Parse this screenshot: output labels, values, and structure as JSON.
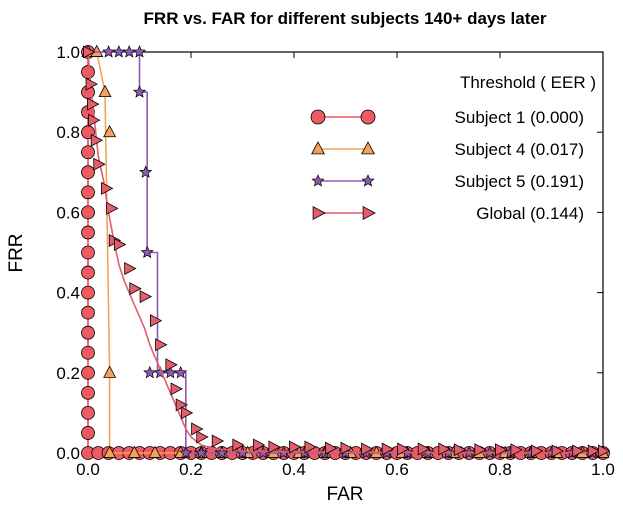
{
  "chart_data": {
    "type": "line",
    "title": "FRR vs. FAR for different subjects 140+ days later",
    "xlabel": "FAR",
    "ylabel": "FRR",
    "xlim": [
      0.0,
      1.0
    ],
    "ylim": [
      0.0,
      1.0
    ],
    "xticks": [
      "0.0",
      "0.2",
      "0.4",
      "0.6",
      "0.8",
      "1.0"
    ],
    "yticks": [
      "0.0",
      "0.2",
      "0.4",
      "0.6",
      "0.8",
      "1.0"
    ],
    "grid": false,
    "legend": {
      "title": "Threshold ( EER )",
      "position": "top-right"
    },
    "series": [
      {
        "name": "Subject 1 (0.000)",
        "color": "#ee5a62",
        "marker": "circle",
        "x": [
          0.0,
          0.0,
          0.0,
          0.0,
          0.0,
          0.0,
          0.0,
          0.0,
          0.0,
          0.0,
          0.0,
          0.0,
          0.0,
          0.0,
          0.0,
          0.0,
          0.0,
          0.0,
          0.0,
          0.0,
          0.0,
          0.02,
          0.04,
          0.06,
          0.08,
          0.1,
          0.12,
          0.14,
          0.16,
          0.18,
          0.2,
          0.22,
          0.24,
          0.26,
          0.28,
          0.3,
          0.32,
          0.34,
          0.36,
          0.38,
          0.4,
          0.42,
          0.44,
          0.46,
          0.48,
          0.5,
          0.52,
          0.54,
          0.56,
          0.58,
          0.6,
          0.62,
          0.64,
          0.66,
          0.68,
          0.7,
          0.72,
          0.74,
          0.76,
          0.78,
          0.8,
          0.82,
          0.84,
          0.86,
          0.88,
          0.9,
          0.92,
          0.94,
          0.96,
          0.98,
          1.0
        ],
        "y": [
          1.0,
          0.95,
          0.9,
          0.85,
          0.8,
          0.75,
          0.7,
          0.65,
          0.6,
          0.55,
          0.5,
          0.45,
          0.4,
          0.35,
          0.3,
          0.25,
          0.2,
          0.15,
          0.1,
          0.05,
          0.0,
          0.0,
          0.0,
          0.0,
          0.0,
          0.0,
          0.0,
          0.0,
          0.0,
          0.0,
          0.0,
          0.0,
          0.0,
          0.0,
          0.0,
          0.0,
          0.0,
          0.0,
          0.0,
          0.0,
          0.0,
          0.0,
          0.0,
          0.0,
          0.0,
          0.0,
          0.0,
          0.0,
          0.0,
          0.0,
          0.0,
          0.0,
          0.0,
          0.0,
          0.0,
          0.0,
          0.0,
          0.0,
          0.0,
          0.0,
          0.0,
          0.0,
          0.0,
          0.0,
          0.0,
          0.0,
          0.0,
          0.0,
          0.0,
          0.0,
          0.0
        ]
      },
      {
        "name": "Subject 4 (0.017)",
        "color": "#f4a259",
        "marker": "triangle",
        "x": [
          0.0,
          0.017,
          0.017,
          0.033,
          0.033,
          0.042,
          0.042,
          0.1,
          0.15,
          0.2,
          0.25,
          0.3,
          0.35,
          0.4,
          0.45,
          0.5,
          0.55,
          0.6,
          0.65,
          0.7,
          0.75,
          0.8,
          0.85,
          0.9,
          0.95,
          1.0
        ],
        "y": [
          1.0,
          1.0,
          1.0,
          0.9,
          0.9,
          0.2,
          0.0,
          0.0,
          0.0,
          0.0,
          0.0,
          0.0,
          0.0,
          0.0,
          0.0,
          0.0,
          0.0,
          0.0,
          0.0,
          0.0,
          0.0,
          0.0,
          0.0,
          0.0,
          0.0,
          0.0
        ],
        "markers": [
          [
            0.0,
            1.0
          ],
          [
            0.017,
            1.0
          ],
          [
            0.033,
            0.9
          ],
          [
            0.042,
            0.8
          ],
          [
            0.042,
            0.2
          ],
          [
            0.042,
            0.0
          ],
          [
            0.09,
            0.0
          ],
          [
            0.13,
            0.0
          ],
          [
            0.18,
            0.0
          ],
          [
            0.22,
            0.0
          ],
          [
            0.26,
            0.0
          ],
          [
            0.31,
            0.0
          ],
          [
            0.36,
            0.0
          ],
          [
            0.41,
            0.0
          ],
          [
            0.46,
            0.0
          ],
          [
            0.51,
            0.0
          ],
          [
            0.56,
            0.0
          ],
          [
            0.61,
            0.0
          ],
          [
            0.66,
            0.0
          ],
          [
            0.71,
            0.0
          ],
          [
            0.76,
            0.0
          ],
          [
            0.81,
            0.0
          ],
          [
            0.86,
            0.0
          ],
          [
            0.91,
            0.0
          ],
          [
            0.96,
            0.0
          ],
          [
            1.0,
            0.0
          ]
        ]
      },
      {
        "name": "Subject 5 (0.191)",
        "color": "#8e5bb0",
        "marker": "star",
        "x": [
          0.0,
          0.1,
          0.1,
          0.115,
          0.115,
          0.135,
          0.135,
          0.19,
          0.19,
          0.2,
          1.0
        ],
        "y": [
          1.0,
          1.0,
          0.9,
          0.9,
          0.5,
          0.5,
          0.2,
          0.2,
          0.0,
          0.0,
          0.0
        ],
        "markers": [
          [
            0.04,
            1.0
          ],
          [
            0.06,
            1.0
          ],
          [
            0.08,
            1.0
          ],
          [
            0.1,
            1.0
          ],
          [
            0.1,
            0.9
          ],
          [
            0.112,
            0.7
          ],
          [
            0.115,
            0.5
          ],
          [
            0.12,
            0.2
          ],
          [
            0.14,
            0.2
          ],
          [
            0.16,
            0.2
          ],
          [
            0.18,
            0.2
          ],
          [
            0.19,
            0.0
          ],
          [
            0.22,
            0.0
          ],
          [
            0.26,
            0.0
          ],
          [
            0.3,
            0.0
          ],
          [
            0.34,
            0.0
          ],
          [
            0.38,
            0.0
          ],
          [
            0.42,
            0.0
          ],
          [
            0.46,
            0.0
          ],
          [
            0.5,
            0.0
          ],
          [
            0.54,
            0.0
          ],
          [
            0.58,
            0.0
          ],
          [
            0.62,
            0.0
          ],
          [
            0.66,
            0.0
          ],
          [
            0.7,
            0.0
          ],
          [
            0.74,
            0.0
          ],
          [
            0.78,
            0.0
          ],
          [
            0.82,
            0.0
          ],
          [
            0.86,
            0.0
          ],
          [
            0.9,
            0.0
          ],
          [
            0.94,
            0.0
          ],
          [
            0.98,
            0.0
          ]
        ]
      },
      {
        "name": "Global (0.144)",
        "color": "#e35d6a",
        "marker": "triangle-right",
        "x": [
          0.0,
          0.005,
          0.01,
          0.015,
          0.02,
          0.03,
          0.04,
          0.05,
          0.06,
          0.07,
          0.08,
          0.09,
          0.1,
          0.11,
          0.12,
          0.13,
          0.14,
          0.15,
          0.16,
          0.17,
          0.18,
          0.19,
          0.2,
          0.22,
          0.25,
          0.3,
          0.4,
          0.5,
          0.6,
          0.7,
          0.8,
          0.9,
          1.0
        ],
        "y": [
          1.0,
          0.92,
          0.86,
          0.8,
          0.74,
          0.68,
          0.6,
          0.53,
          0.47,
          0.43,
          0.4,
          0.37,
          0.34,
          0.31,
          0.27,
          0.24,
          0.21,
          0.18,
          0.15,
          0.12,
          0.09,
          0.06,
          0.04,
          0.02,
          0.01,
          0.005,
          0.003,
          0.002,
          0.002,
          0.001,
          0.001,
          0.001,
          0.001
        ],
        "markers": [
          [
            0.0,
            1.0
          ],
          [
            0.005,
            0.92
          ],
          [
            0.008,
            0.87
          ],
          [
            0.01,
            0.83
          ],
          [
            0.015,
            0.78
          ],
          [
            0.02,
            0.72
          ],
          [
            0.035,
            0.66
          ],
          [
            0.045,
            0.61
          ],
          [
            0.05,
            0.53
          ],
          [
            0.06,
            0.52
          ],
          [
            0.08,
            0.46
          ],
          [
            0.09,
            0.41
          ],
          [
            0.11,
            0.39
          ],
          [
            0.13,
            0.33
          ],
          [
            0.14,
            0.27
          ],
          [
            0.16,
            0.22
          ],
          [
            0.17,
            0.16
          ],
          [
            0.18,
            0.12
          ],
          [
            0.19,
            0.1
          ],
          [
            0.21,
            0.06
          ],
          [
            0.22,
            0.04
          ],
          [
            0.25,
            0.03
          ],
          [
            0.29,
            0.02
          ],
          [
            0.33,
            0.02
          ],
          [
            0.36,
            0.015
          ],
          [
            0.4,
            0.015
          ],
          [
            0.43,
            0.015
          ],
          [
            0.47,
            0.012
          ],
          [
            0.5,
            0.012
          ],
          [
            0.54,
            0.01
          ],
          [
            0.58,
            0.01
          ],
          [
            0.61,
            0.01
          ],
          [
            0.65,
            0.01
          ],
          [
            0.69,
            0.01
          ],
          [
            0.72,
            0.008
          ],
          [
            0.76,
            0.008
          ],
          [
            0.8,
            0.008
          ],
          [
            0.83,
            0.008
          ],
          [
            0.87,
            0.005
          ],
          [
            0.91,
            0.005
          ],
          [
            0.95,
            0.005
          ],
          [
            0.98,
            0.005
          ],
          [
            1.0,
            0.005
          ]
        ]
      }
    ]
  }
}
